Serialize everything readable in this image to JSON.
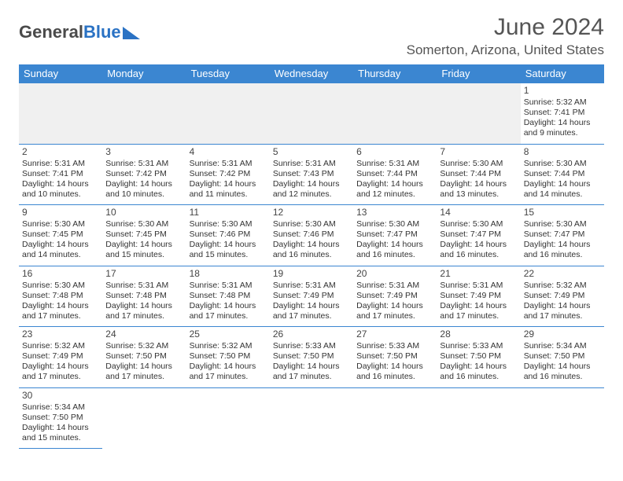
{
  "logo": {
    "text1": "General",
    "text2": "Blue"
  },
  "title": "June 2024",
  "location": "Somerton, Arizona, United States",
  "weekday_headers": [
    "Sunday",
    "Monday",
    "Tuesday",
    "Wednesday",
    "Thursday",
    "Friday",
    "Saturday"
  ],
  "colors": {
    "header_bg": "#3b86d1",
    "header_text": "#ffffff",
    "border": "#3b86d1",
    "daynum": "#444444",
    "body_text": "#333333",
    "empty_bg": "#f0f0f0",
    "title_text": "#555555",
    "logo_gray": "#4a4a4a",
    "logo_blue": "#2a72c4"
  },
  "layout": {
    "columns": 7,
    "leading_blanks": 6,
    "trailing_blanks": 6,
    "cell_font_size_pt": 8,
    "header_font_size_pt": 10,
    "title_font_size_pt": 22,
    "location_font_size_pt": 13
  },
  "days": [
    {
      "n": "1",
      "sunrise": "5:32 AM",
      "sunset": "7:41 PM",
      "daylight": "14 hours and 9 minutes."
    },
    {
      "n": "2",
      "sunrise": "5:31 AM",
      "sunset": "7:41 PM",
      "daylight": "14 hours and 10 minutes."
    },
    {
      "n": "3",
      "sunrise": "5:31 AM",
      "sunset": "7:42 PM",
      "daylight": "14 hours and 10 minutes."
    },
    {
      "n": "4",
      "sunrise": "5:31 AM",
      "sunset": "7:42 PM",
      "daylight": "14 hours and 11 minutes."
    },
    {
      "n": "5",
      "sunrise": "5:31 AM",
      "sunset": "7:43 PM",
      "daylight": "14 hours and 12 minutes."
    },
    {
      "n": "6",
      "sunrise": "5:31 AM",
      "sunset": "7:44 PM",
      "daylight": "14 hours and 12 minutes."
    },
    {
      "n": "7",
      "sunrise": "5:30 AM",
      "sunset": "7:44 PM",
      "daylight": "14 hours and 13 minutes."
    },
    {
      "n": "8",
      "sunrise": "5:30 AM",
      "sunset": "7:44 PM",
      "daylight": "14 hours and 14 minutes."
    },
    {
      "n": "9",
      "sunrise": "5:30 AM",
      "sunset": "7:45 PM",
      "daylight": "14 hours and 14 minutes."
    },
    {
      "n": "10",
      "sunrise": "5:30 AM",
      "sunset": "7:45 PM",
      "daylight": "14 hours and 15 minutes."
    },
    {
      "n": "11",
      "sunrise": "5:30 AM",
      "sunset": "7:46 PM",
      "daylight": "14 hours and 15 minutes."
    },
    {
      "n": "12",
      "sunrise": "5:30 AM",
      "sunset": "7:46 PM",
      "daylight": "14 hours and 16 minutes."
    },
    {
      "n": "13",
      "sunrise": "5:30 AM",
      "sunset": "7:47 PM",
      "daylight": "14 hours and 16 minutes."
    },
    {
      "n": "14",
      "sunrise": "5:30 AM",
      "sunset": "7:47 PM",
      "daylight": "14 hours and 16 minutes."
    },
    {
      "n": "15",
      "sunrise": "5:30 AM",
      "sunset": "7:47 PM",
      "daylight": "14 hours and 16 minutes."
    },
    {
      "n": "16",
      "sunrise": "5:30 AM",
      "sunset": "7:48 PM",
      "daylight": "14 hours and 17 minutes."
    },
    {
      "n": "17",
      "sunrise": "5:31 AM",
      "sunset": "7:48 PM",
      "daylight": "14 hours and 17 minutes."
    },
    {
      "n": "18",
      "sunrise": "5:31 AM",
      "sunset": "7:48 PM",
      "daylight": "14 hours and 17 minutes."
    },
    {
      "n": "19",
      "sunrise": "5:31 AM",
      "sunset": "7:49 PM",
      "daylight": "14 hours and 17 minutes."
    },
    {
      "n": "20",
      "sunrise": "5:31 AM",
      "sunset": "7:49 PM",
      "daylight": "14 hours and 17 minutes."
    },
    {
      "n": "21",
      "sunrise": "5:31 AM",
      "sunset": "7:49 PM",
      "daylight": "14 hours and 17 minutes."
    },
    {
      "n": "22",
      "sunrise": "5:32 AM",
      "sunset": "7:49 PM",
      "daylight": "14 hours and 17 minutes."
    },
    {
      "n": "23",
      "sunrise": "5:32 AM",
      "sunset": "7:49 PM",
      "daylight": "14 hours and 17 minutes."
    },
    {
      "n": "24",
      "sunrise": "5:32 AM",
      "sunset": "7:50 PM",
      "daylight": "14 hours and 17 minutes."
    },
    {
      "n": "25",
      "sunrise": "5:32 AM",
      "sunset": "7:50 PM",
      "daylight": "14 hours and 17 minutes."
    },
    {
      "n": "26",
      "sunrise": "5:33 AM",
      "sunset": "7:50 PM",
      "daylight": "14 hours and 17 minutes."
    },
    {
      "n": "27",
      "sunrise": "5:33 AM",
      "sunset": "7:50 PM",
      "daylight": "14 hours and 16 minutes."
    },
    {
      "n": "28",
      "sunrise": "5:33 AM",
      "sunset": "7:50 PM",
      "daylight": "14 hours and 16 minutes."
    },
    {
      "n": "29",
      "sunrise": "5:34 AM",
      "sunset": "7:50 PM",
      "daylight": "14 hours and 16 minutes."
    },
    {
      "n": "30",
      "sunrise": "5:34 AM",
      "sunset": "7:50 PM",
      "daylight": "14 hours and 15 minutes."
    }
  ],
  "labels": {
    "sunrise_prefix": "Sunrise: ",
    "sunset_prefix": "Sunset: ",
    "daylight_prefix": "Daylight: "
  }
}
